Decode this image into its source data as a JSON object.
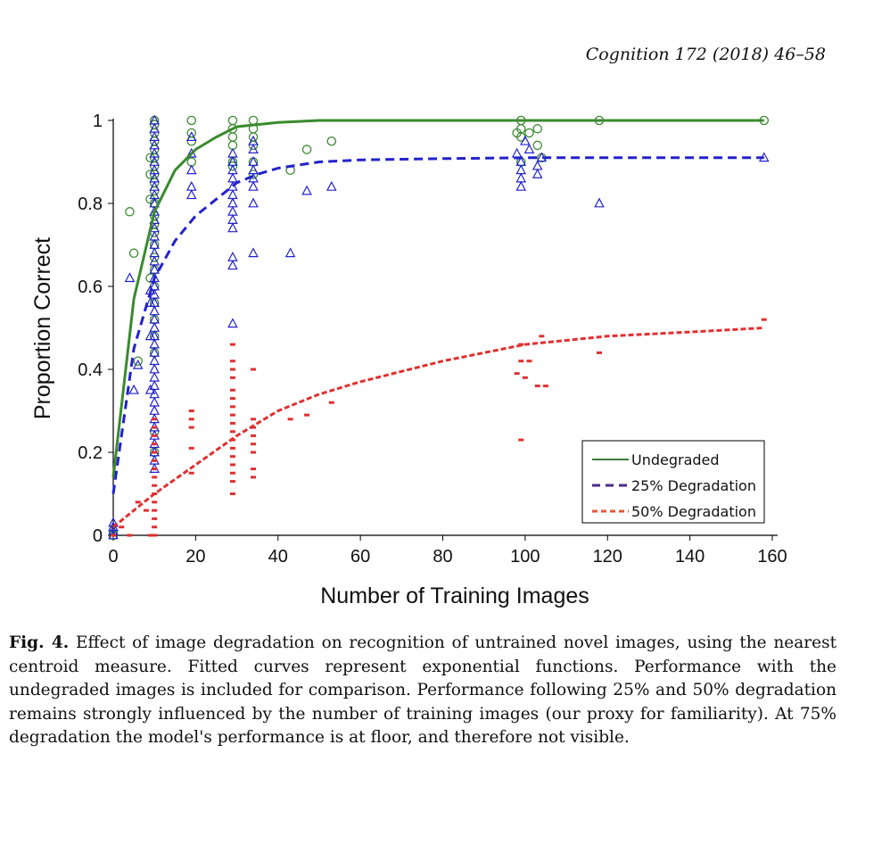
{
  "header": {
    "journal_ref": "Cognition 172 (2018) 46–58"
  },
  "caption": {
    "label": "Fig. 4.",
    "text": "Effect of image degradation on recognition of untrained novel images, using the nearest centroid measure. Fitted curves represent exponential functions. Performance with the undegraded images is included for comparison. Performance following 25% and 50% degradation remains strongly influenced by the number of training images (our proxy for familiarity). At 75% degradation the model's performance is at floor, and therefore not visible."
  },
  "chart_data": {
    "type": "scatter",
    "xlabel": "Number of Training Images",
    "ylabel": "Proportion Correct",
    "xlim": [
      0,
      160
    ],
    "ylim": [
      0,
      1
    ],
    "xticks": [
      0,
      20,
      40,
      60,
      80,
      100,
      120,
      140,
      160
    ],
    "yticks": [
      0,
      0.2,
      0.4,
      0.6,
      0.8,
      1
    ],
    "ytick_labels": [
      "0",
      "0.2",
      "0.4",
      "0.6",
      "0.8",
      "1"
    ],
    "grid": false,
    "legend_position": "bottom-right",
    "series": [
      {
        "name": "Undegraded",
        "color": "#3a8a2e",
        "marker": "circle",
        "line_style": "solid",
        "points": [
          [
            0,
            0
          ],
          [
            0,
            0.01
          ],
          [
            4,
            0.78
          ],
          [
            5,
            0.68
          ],
          [
            6,
            0.42
          ],
          [
            9,
            0.91
          ],
          [
            9,
            0.87
          ],
          [
            9,
            0.81
          ],
          [
            9,
            0.62
          ],
          [
            10,
            1.0
          ],
          [
            10,
            0.99
          ],
          [
            10,
            0.97
          ],
          [
            10,
            0.95
          ],
          [
            10,
            0.93
          ],
          [
            10,
            0.91
          ],
          [
            10,
            0.89
          ],
          [
            10,
            0.87
          ],
          [
            10,
            0.85
          ],
          [
            10,
            0.83
          ],
          [
            10,
            0.8
          ],
          [
            10,
            0.77
          ],
          [
            10,
            0.75
          ],
          [
            10,
            0.73
          ],
          [
            10,
            0.7
          ],
          [
            10,
            0.67
          ],
          [
            10,
            0.64
          ],
          [
            10,
            0.6
          ],
          [
            10,
            0.56
          ],
          [
            10,
            0.52
          ],
          [
            10,
            0.48
          ],
          [
            10,
            0.44
          ],
          [
            10,
            0.25
          ],
          [
            10,
            0.2
          ],
          [
            19,
            1.0
          ],
          [
            19,
            0.97
          ],
          [
            19,
            0.95
          ],
          [
            19,
            0.9
          ],
          [
            29,
            1.0
          ],
          [
            29,
            0.98
          ],
          [
            29,
            0.96
          ],
          [
            29,
            0.94
          ],
          [
            29,
            0.9
          ],
          [
            29,
            0.89
          ],
          [
            34,
            1.0
          ],
          [
            34,
            0.98
          ],
          [
            34,
            0.96
          ],
          [
            34,
            0.94
          ],
          [
            34,
            0.9
          ],
          [
            34,
            0.87
          ],
          [
            43,
            0.88
          ],
          [
            47,
            0.93
          ],
          [
            53,
            0.95
          ],
          [
            98,
            0.97
          ],
          [
            99,
            1.0
          ],
          [
            99,
            0.98
          ],
          [
            99,
            0.96
          ],
          [
            99,
            0.9
          ],
          [
            101,
            0.97
          ],
          [
            103,
            0.98
          ],
          [
            103,
            0.94
          ],
          [
            104,
            0.91
          ],
          [
            118,
            1.0
          ],
          [
            158,
            1.0
          ]
        ],
        "fit_curve": [
          [
            0,
            0.14
          ],
          [
            5,
            0.57
          ],
          [
            10,
            0.78
          ],
          [
            15,
            0.88
          ],
          [
            20,
            0.93
          ],
          [
            25,
            0.96
          ],
          [
            30,
            0.985
          ],
          [
            40,
            0.995
          ],
          [
            50,
            1.0
          ],
          [
            100,
            1.0
          ],
          [
            158,
            1.0
          ]
        ]
      },
      {
        "name": "25% Degradation",
        "color": "#2222cc",
        "marker": "triangle",
        "line_style": "dashed",
        "points": [
          [
            0,
            0
          ],
          [
            0,
            0.01
          ],
          [
            0,
            0.02
          ],
          [
            0,
            0.03
          ],
          [
            4,
            0.62
          ],
          [
            5,
            0.35
          ],
          [
            6,
            0.41
          ],
          [
            9,
            0.59
          ],
          [
            9,
            0.56
          ],
          [
            9,
            0.48
          ],
          [
            9,
            0.35
          ],
          [
            10,
            1.0
          ],
          [
            10,
            0.98
          ],
          [
            10,
            0.96
          ],
          [
            10,
            0.94
          ],
          [
            10,
            0.92
          ],
          [
            10,
            0.9
          ],
          [
            10,
            0.88
          ],
          [
            10,
            0.86
          ],
          [
            10,
            0.84
          ],
          [
            10,
            0.82
          ],
          [
            10,
            0.8
          ],
          [
            10,
            0.78
          ],
          [
            10,
            0.76
          ],
          [
            10,
            0.74
          ],
          [
            10,
            0.72
          ],
          [
            10,
            0.7
          ],
          [
            10,
            0.68
          ],
          [
            10,
            0.66
          ],
          [
            10,
            0.64
          ],
          [
            10,
            0.62
          ],
          [
            10,
            0.6
          ],
          [
            10,
            0.58
          ],
          [
            10,
            0.56
          ],
          [
            10,
            0.54
          ],
          [
            10,
            0.52
          ],
          [
            10,
            0.5
          ],
          [
            10,
            0.48
          ],
          [
            10,
            0.46
          ],
          [
            10,
            0.44
          ],
          [
            10,
            0.42
          ],
          [
            10,
            0.4
          ],
          [
            10,
            0.38
          ],
          [
            10,
            0.36
          ],
          [
            10,
            0.34
          ],
          [
            10,
            0.32
          ],
          [
            10,
            0.3
          ],
          [
            10,
            0.28
          ],
          [
            10,
            0.26
          ],
          [
            10,
            0.24
          ],
          [
            10,
            0.22
          ],
          [
            10,
            0.2
          ],
          [
            10,
            0.18
          ],
          [
            10,
            0.16
          ],
          [
            19,
            0.96
          ],
          [
            19,
            0.92
          ],
          [
            19,
            0.88
          ],
          [
            19,
            0.84
          ],
          [
            19,
            0.82
          ],
          [
            29,
            0.92
          ],
          [
            29,
            0.9
          ],
          [
            29,
            0.88
          ],
          [
            29,
            0.86
          ],
          [
            29,
            0.84
          ],
          [
            29,
            0.82
          ],
          [
            29,
            0.8
          ],
          [
            29,
            0.78
          ],
          [
            29,
            0.76
          ],
          [
            29,
            0.74
          ],
          [
            29,
            0.67
          ],
          [
            29,
            0.65
          ],
          [
            29,
            0.51
          ],
          [
            34,
            0.95
          ],
          [
            34,
            0.93
          ],
          [
            34,
            0.9
          ],
          [
            34,
            0.88
          ],
          [
            34,
            0.86
          ],
          [
            34,
            0.84
          ],
          [
            34,
            0.8
          ],
          [
            34,
            0.68
          ],
          [
            43,
            0.68
          ],
          [
            47,
            0.83
          ],
          [
            53,
            0.84
          ],
          [
            98,
            0.92
          ],
          [
            99,
            0.9
          ],
          [
            99,
            0.88
          ],
          [
            99,
            0.86
          ],
          [
            99,
            0.84
          ],
          [
            100,
            0.95
          ],
          [
            101,
            0.93
          ],
          [
            103,
            0.87
          ],
          [
            103,
            0.89
          ],
          [
            104,
            0.91
          ],
          [
            118,
            0.8
          ],
          [
            158,
            0.91
          ]
        ],
        "fit_curve": [
          [
            0,
            0.1
          ],
          [
            5,
            0.45
          ],
          [
            10,
            0.62
          ],
          [
            15,
            0.71
          ],
          [
            20,
            0.77
          ],
          [
            25,
            0.81
          ],
          [
            30,
            0.85
          ],
          [
            35,
            0.87
          ],
          [
            40,
            0.885
          ],
          [
            50,
            0.9
          ],
          [
            60,
            0.905
          ],
          [
            80,
            0.908
          ],
          [
            100,
            0.91
          ],
          [
            158,
            0.91
          ]
        ]
      },
      {
        "name": "50% Degradation",
        "color": "#e03030",
        "marker": "dash",
        "line_style": "dotted",
        "points": [
          [
            0,
            0
          ],
          [
            2,
            0.02
          ],
          [
            4,
            0.0
          ],
          [
            6,
            0.08
          ],
          [
            8,
            0.06
          ],
          [
            9,
            0.0
          ],
          [
            10,
            0.28
          ],
          [
            10,
            0.26
          ],
          [
            10,
            0.24
          ],
          [
            10,
            0.22
          ],
          [
            10,
            0.2
          ],
          [
            10,
            0.18
          ],
          [
            10,
            0.16
          ],
          [
            10,
            0.14
          ],
          [
            10,
            0.12
          ],
          [
            10,
            0.1
          ],
          [
            10,
            0.08
          ],
          [
            10,
            0.06
          ],
          [
            10,
            0.04
          ],
          [
            10,
            0.02
          ],
          [
            10,
            0.0
          ],
          [
            19,
            0.3
          ],
          [
            19,
            0.28
          ],
          [
            19,
            0.26
          ],
          [
            19,
            0.21
          ],
          [
            19,
            0.15
          ],
          [
            29,
            0.46
          ],
          [
            29,
            0.42
          ],
          [
            29,
            0.4
          ],
          [
            29,
            0.38
          ],
          [
            29,
            0.35
          ],
          [
            29,
            0.33
          ],
          [
            29,
            0.31
          ],
          [
            29,
            0.29
          ],
          [
            29,
            0.27
          ],
          [
            29,
            0.25
          ],
          [
            29,
            0.23
          ],
          [
            29,
            0.21
          ],
          [
            29,
            0.19
          ],
          [
            29,
            0.17
          ],
          [
            29,
            0.15
          ],
          [
            29,
            0.13
          ],
          [
            29,
            0.1
          ],
          [
            34,
            0.4
          ],
          [
            34,
            0.28
          ],
          [
            34,
            0.26
          ],
          [
            34,
            0.24
          ],
          [
            34,
            0.22
          ],
          [
            34,
            0.2
          ],
          [
            34,
            0.16
          ],
          [
            34,
            0.14
          ],
          [
            43,
            0.28
          ],
          [
            47,
            0.29
          ],
          [
            53,
            0.32
          ],
          [
            98,
            0.39
          ],
          [
            99,
            0.46
          ],
          [
            99,
            0.42
          ],
          [
            99,
            0.23
          ],
          [
            100,
            0.38
          ],
          [
            101,
            0.42
          ],
          [
            103,
            0.36
          ],
          [
            104,
            0.48
          ],
          [
            105,
            0.36
          ],
          [
            118,
            0.44
          ],
          [
            158,
            0.52
          ]
        ],
        "fit_curve": [
          [
            0,
            0.02
          ],
          [
            10,
            0.1
          ],
          [
            20,
            0.17
          ],
          [
            30,
            0.24
          ],
          [
            40,
            0.3
          ],
          [
            50,
            0.34
          ],
          [
            60,
            0.37
          ],
          [
            80,
            0.42
          ],
          [
            100,
            0.46
          ],
          [
            120,
            0.48
          ],
          [
            140,
            0.49
          ],
          [
            158,
            0.5
          ]
        ]
      }
    ]
  }
}
